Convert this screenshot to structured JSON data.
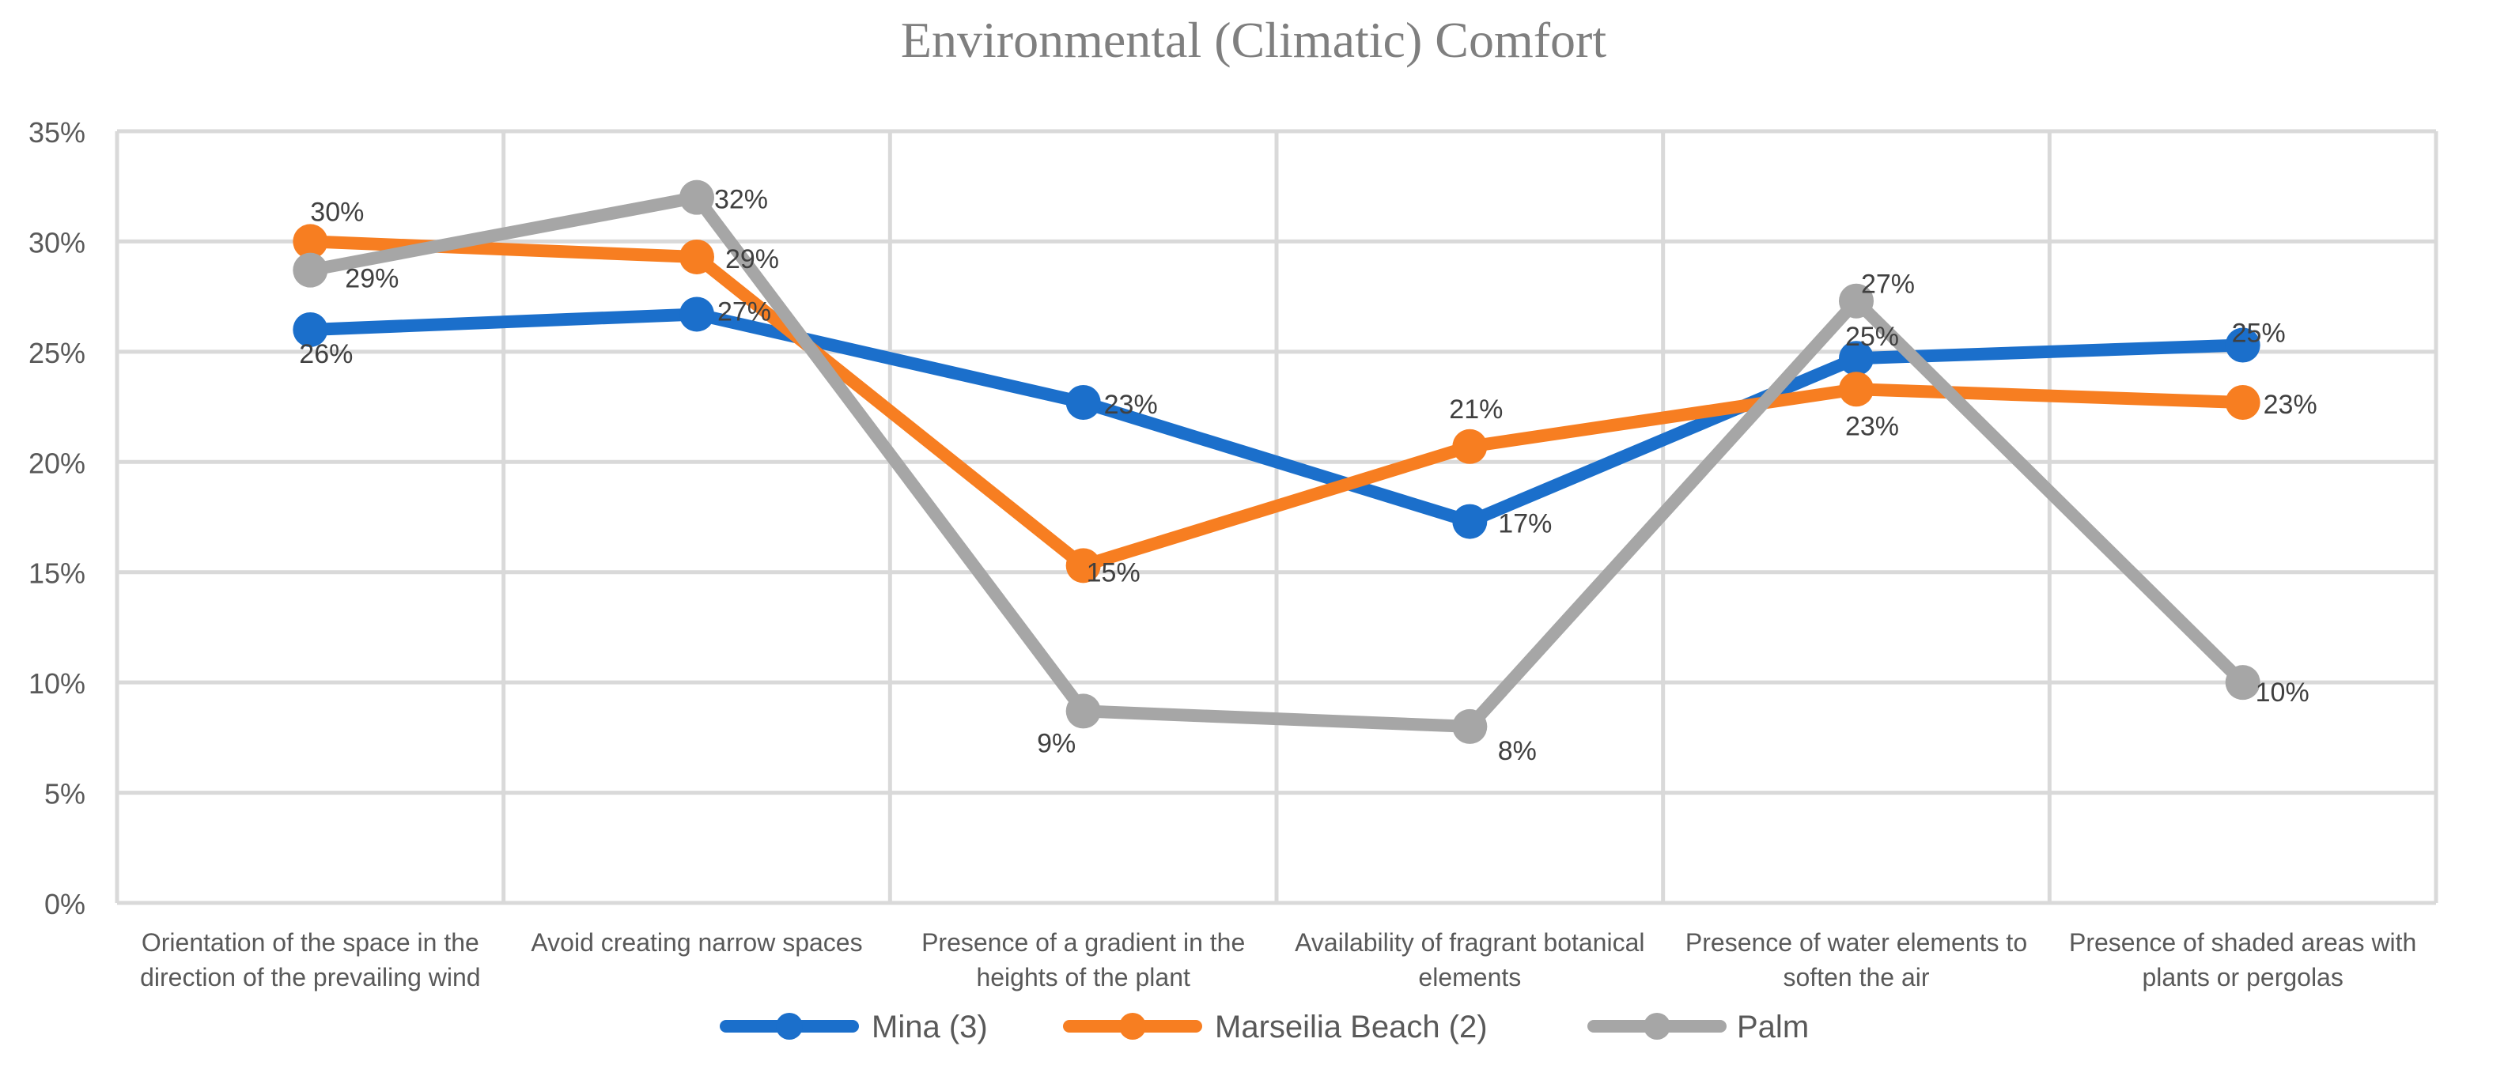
{
  "chart_data": {
    "type": "line",
    "title": "Environmental (Climatic) Comfort",
    "xlabel": "",
    "ylabel": "",
    "ylim": [
      0,
      35
    ],
    "y_ticks": [
      0,
      5,
      10,
      15,
      20,
      25,
      30,
      35
    ],
    "y_tick_labels": [
      "0%",
      "5%",
      "10%",
      "15%",
      "20%",
      "25%",
      "30%",
      "35%"
    ],
    "grid": true,
    "legend_position": "bottom",
    "categories": [
      [
        "Orientation of the space in the",
        "direction of the prevailing wind"
      ],
      [
        "Avoid creating narrow spaces"
      ],
      [
        "Presence of a gradient in the",
        "heights of the plant"
      ],
      [
        "Availability of fragrant botanical",
        "elements"
      ],
      [
        "Presence of water elements to",
        "soften the air"
      ],
      [
        "Presence of shaded areas with",
        "plants or pergolas"
      ]
    ],
    "series": [
      {
        "name": "Mina (3)",
        "color": "#1B6FCB",
        "values": [
          26,
          26.7,
          22.7,
          17.3,
          24.7,
          25.3
        ],
        "labels": [
          "26%",
          "27%",
          "23%",
          "17%",
          "25%",
          "25%"
        ]
      },
      {
        "name": "Marseilia Beach (2)",
        "color": "#F77E21",
        "values": [
          30,
          29.3,
          15.3,
          20.7,
          23.3,
          22.7
        ],
        "labels": [
          "30%",
          "29%",
          "15%",
          "21%",
          "23%",
          "23%"
        ]
      },
      {
        "name": "Palm",
        "color": "#A6A6A6",
        "values": [
          28.7,
          32,
          8.7,
          8,
          27.3,
          10
        ],
        "labels": [
          "29%",
          "32%",
          "9%",
          "8%",
          "27%",
          "10%"
        ]
      }
    ]
  }
}
